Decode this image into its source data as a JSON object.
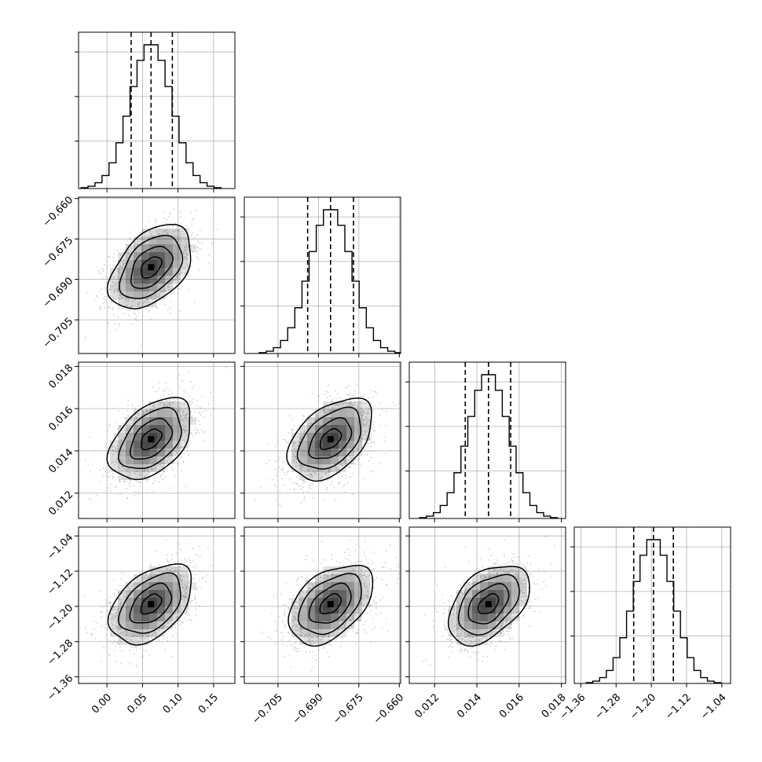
{
  "chart_data": {
    "type": "corner",
    "params": [
      {
        "mean": 0.062,
        "sd": 0.029,
        "lim": [
          -0.04,
          0.18
        ],
        "ticks": [
          0.0,
          0.05,
          0.1,
          0.15
        ],
        "tick_labels": [
          "0.00",
          "0.05",
          "0.10",
          "0.15"
        ],
        "quantiles": [
          0.034,
          0.062,
          0.092
        ]
      },
      {
        "mean": -0.6855,
        "sd": 0.0078,
        "lim": [
          -0.7175,
          -0.6595
        ],
        "ticks": [
          -0.705,
          -0.69,
          -0.675,
          -0.66
        ],
        "tick_labels": [
          "−0.705",
          "−0.690",
          "−0.675",
          "−0.660"
        ],
        "quantiles": [
          -0.694,
          -0.6855,
          -0.677
        ]
      },
      {
        "mean": 0.01455,
        "sd": 0.00096,
        "lim": [
          0.0108,
          0.0182
        ],
        "ticks": [
          0.012,
          0.014,
          0.016,
          0.018
        ],
        "tick_labels": [
          "0.012",
          "0.014",
          "0.016",
          "0.018"
        ],
        "quantiles": [
          0.01345,
          0.01455,
          0.0156
        ]
      },
      {
        "mean": -1.195,
        "sd": 0.045,
        "lim": [
          -1.375,
          -1.02
        ],
        "ticks": [
          -1.36,
          -1.28,
          -1.2,
          -1.12,
          -1.04
        ],
        "tick_labels": [
          "−1.36",
          "−1.28",
          "−1.20",
          "−1.12",
          "−1.04"
        ],
        "quantiles": [
          -1.24,
          -1.195,
          -1.15
        ]
      }
    ],
    "correlation": 0.45,
    "hist_bins": 20,
    "contour_levels": [
      0.118,
      0.393,
      0.675,
      0.865
    ],
    "grid": true,
    "colors": {
      "line": "#000000",
      "points": "#9a9a9a",
      "grid": "#b0b0b0",
      "density": "#000000"
    }
  }
}
